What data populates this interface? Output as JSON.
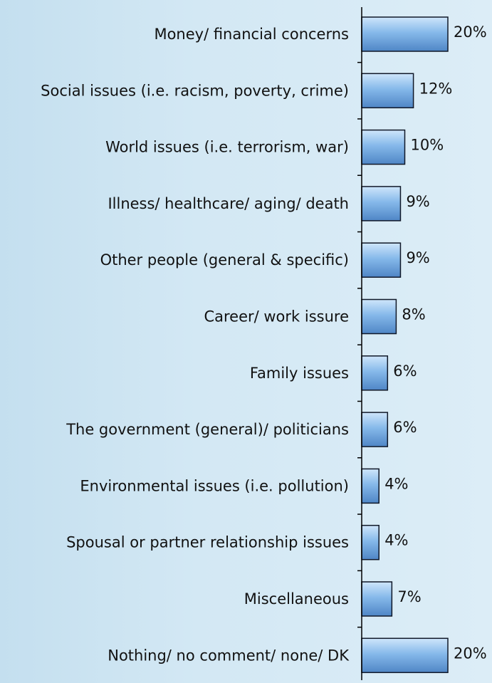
{
  "chart_data": {
    "type": "bar",
    "orientation": "horizontal",
    "categories": [
      "Money/ financial concerns",
      "Social issues (i.e. racism, poverty, crime)",
      "World issues (i.e. terrorism, war)",
      "Illness/ healthcare/ aging/ death",
      "Other people (general & specific)",
      "Career/ work issure",
      "Family issues",
      "The government (general)/ politicians",
      "Environmental issues (i.e. pollution)",
      "Spousal or partner relationship issues",
      "Miscellaneous",
      "Nothing/ no comment/ none/ DK"
    ],
    "values": [
      20,
      12,
      10,
      9,
      9,
      8,
      6,
      6,
      4,
      4,
      7,
      20
    ],
    "value_labels": [
      "20%",
      "12%",
      "10%",
      "9%",
      "9%",
      "8%",
      "6%",
      "6%",
      "4%",
      "4%",
      "7%",
      "20%"
    ],
    "title": "",
    "xlabel": "",
    "ylabel": "",
    "xlim": [
      0,
      29
    ],
    "grid": false,
    "legend": "none",
    "colors": {
      "bar_light": "#cfe6fb",
      "bar_mid": "#86b9ea",
      "bar_dark": "#4f86c6",
      "bar_stroke": "#101828",
      "axis": "#000000",
      "background": "#d3e8f4"
    }
  }
}
